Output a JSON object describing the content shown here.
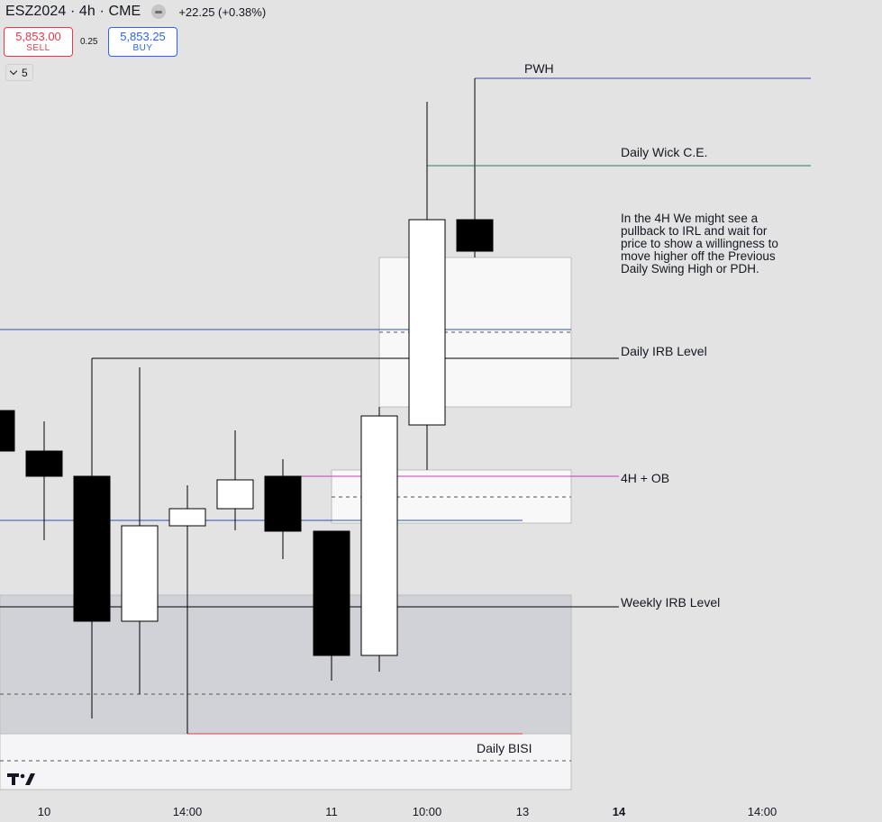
{
  "header": {
    "symbol": "ESZ2024 · 4h · CME",
    "change": "+22.25 (+0.38%)"
  },
  "trade": {
    "sell_price": "5,853.00",
    "sell_label": "SELL",
    "spread": "0.25",
    "buy_price": "5,853.25",
    "buy_label": "BUY"
  },
  "indicators_toggle": {
    "count": "5"
  },
  "colors": {
    "background": "#e3e3e3",
    "bullish_candle": "#ffffff",
    "bearish_candle": "#000000",
    "pwh_line": "#2f4fb5",
    "wick_ce_line": "#2b7a6b",
    "ob_line": "#c03fb0",
    "bisi_line": "#f23645"
  },
  "chart_data": {
    "type": "candlestick",
    "timeframe": "4h",
    "x_tick_labels": [
      "10",
      "14:00",
      "11",
      "10:00",
      "13",
      "14",
      "14:00"
    ],
    "candles": [
      {
        "open": 5792.0,
        "high": 5794.0,
        "low": 5784.0,
        "close": 5784.0
      },
      {
        "open": 5780.0,
        "high": 5788.0,
        "low": 5766.0,
        "close": 5776.0
      },
      {
        "open": 5776.0,
        "high": 5810.0,
        "low": 5729.0,
        "close": 5750.0
      },
      {
        "open": 5750.0,
        "high": 5808.0,
        "low": 5737.0,
        "close": 5770.0
      },
      {
        "open": 5767.0,
        "high": 5773.0,
        "low": 5724.0,
        "close": 5770.0
      },
      {
        "open": 5768.0,
        "high": 5783.0,
        "low": 5767.0,
        "close": 5774.0
      },
      {
        "open": 5776.0,
        "high": 5778.0,
        "low": 5762.0,
        "close": 5764.0
      },
      {
        "open": 5764.0,
        "high": 5766.0,
        "low": 5737.0,
        "close": 5744.0
      },
      {
        "open": 5744.0,
        "high": 5791.0,
        "low": 5739.0,
        "close": 5791.0
      },
      {
        "open": 5782.0,
        "high": 5852.0,
        "low": 5777.0,
        "close": 5826.0
      },
      {
        "open": 5826.0,
        "high": 5850.0,
        "low": 5818.0,
        "close": 5820.0
      }
    ],
    "levels": [
      {
        "label": "PWH",
        "price": 5850.0
      },
      {
        "label": "Daily Wick C.E.",
        "price": 5835.0
      },
      {
        "label": "Daily IRB Level",
        "price": 5809.5
      },
      {
        "label": "4H + OB",
        "price": 5777.5
      },
      {
        "label": "Weekly IRB Level",
        "price": 5752.5
      }
    ],
    "zones": [
      {
        "label": "Daily BISI"
      }
    ],
    "annotations": [
      "In the 4H We might see a",
      "pullback to IRL and wait for",
      "price to show a willingness to",
      "move higher off the Previous",
      "Daily Swing High or PDH."
    ]
  }
}
